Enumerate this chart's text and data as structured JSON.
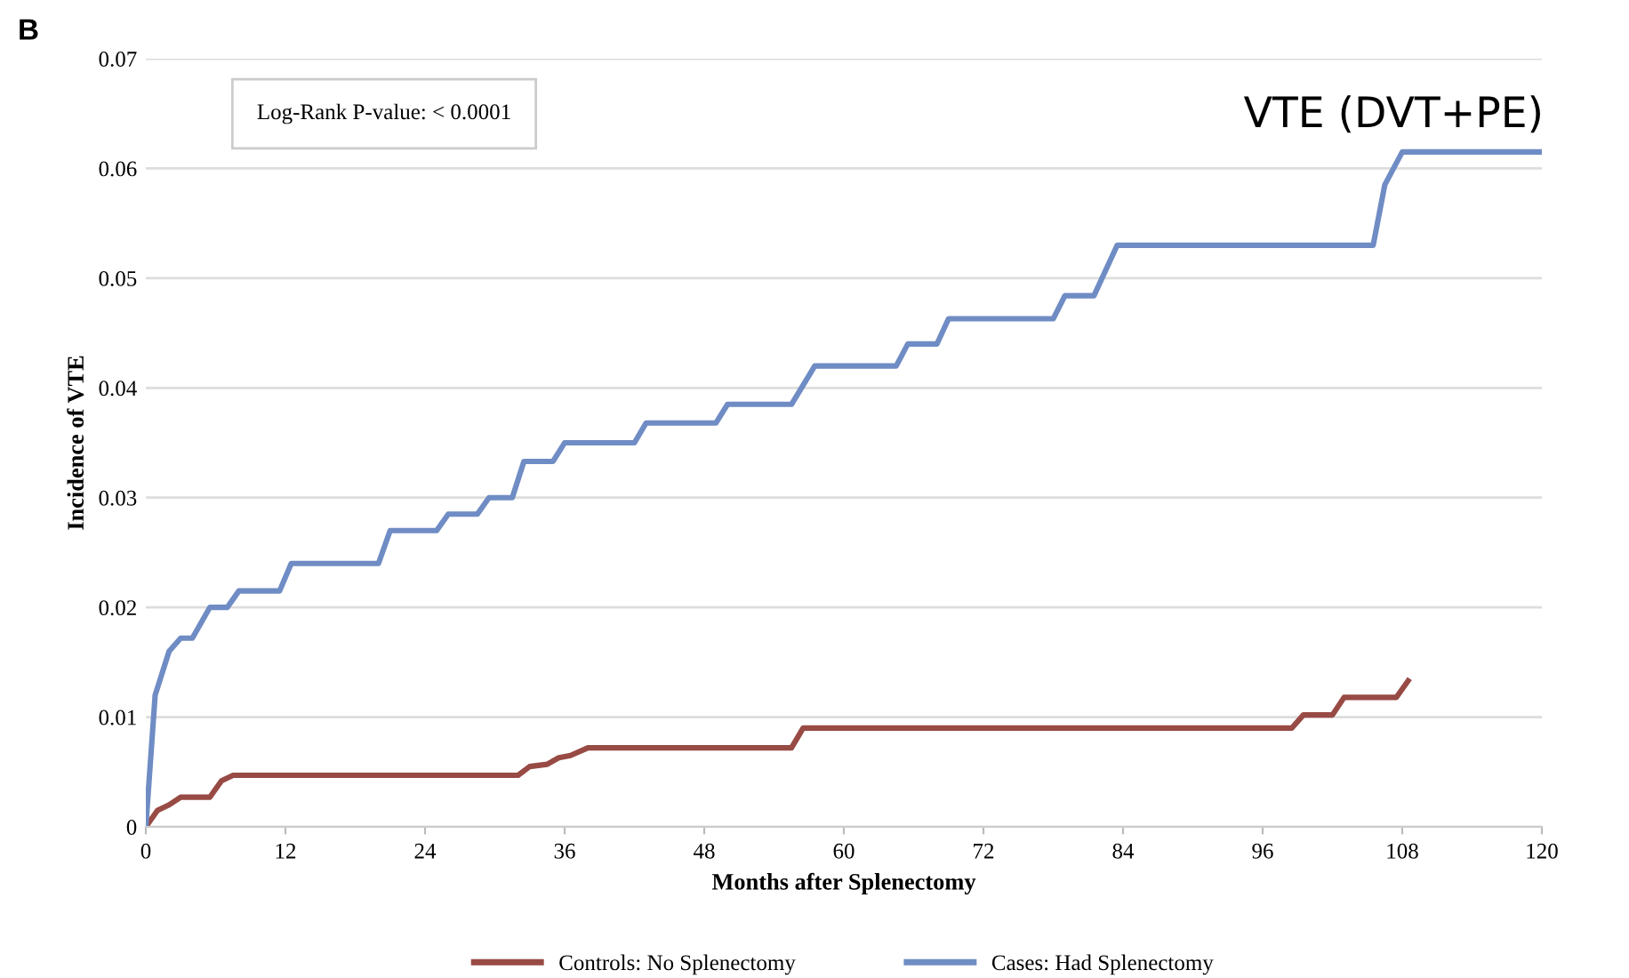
{
  "chart_data": {
    "type": "line",
    "title": "VTE (DVT+PE)",
    "xlabel": "Months after Splenectomy",
    "ylabel": "Incidence of VTE",
    "annotations": [
      "B",
      "Log-Rank P-value: < 0.0001"
    ],
    "series": [
      {
        "name": "Controls: No Splenectomy",
        "color": "#984a44",
        "x": [
          0,
          1,
          2,
          3,
          5.5,
          6.5,
          7.5,
          32,
          33,
          34.5,
          35.5,
          36.5,
          38,
          55.5,
          56.5,
          98.5,
          99.5,
          102,
          103,
          107.5,
          108.5
        ],
        "values": [
          0,
          0.0015,
          0.002,
          0.0027,
          0.0027,
          0.0042,
          0.0047,
          0.0047,
          0.0055,
          0.0057,
          0.0063,
          0.0065,
          0.0072,
          0.0072,
          0.009,
          0.009,
          0.0102,
          0.0102,
          0.0118,
          0.0118,
          0.0133
        ]
      },
      {
        "name": "Cases: Had Splenectomy",
        "color": "#6f8cc4",
        "x": [
          0,
          0.8,
          2,
          3,
          4,
          5.5,
          7,
          8,
          11.5,
          12.5,
          20,
          21,
          25,
          26,
          28.5,
          29.5,
          31.5,
          32.5,
          35,
          36,
          42,
          43,
          49,
          50,
          55.5,
          57.5,
          64.5,
          65.5,
          68,
          69,
          78,
          79,
          81.5,
          83.5,
          105.5,
          106.5,
          108,
          120
        ],
        "values": [
          0,
          0.012,
          0.016,
          0.0172,
          0.0172,
          0.02,
          0.02,
          0.0215,
          0.0215,
          0.024,
          0.024,
          0.027,
          0.027,
          0.0285,
          0.0285,
          0.03,
          0.03,
          0.0333,
          0.0333,
          0.035,
          0.035,
          0.0368,
          0.0368,
          0.0385,
          0.0385,
          0.042,
          0.042,
          0.044,
          0.044,
          0.0463,
          0.0463,
          0.0484,
          0.0484,
          0.053,
          0.053,
          0.0585,
          0.0615,
          0.0615
        ]
      }
    ],
    "xlim": [
      0,
      120
    ],
    "xticks": [
      0,
      12,
      24,
      36,
      48,
      60,
      72,
      84,
      96,
      108,
      120
    ],
    "ylim": [
      0,
      0.07
    ],
    "yticks": [
      0,
      0.01,
      0.02,
      0.03,
      0.04,
      0.05,
      0.06,
      0.07
    ],
    "grid": "y",
    "legend": "bottom",
    "marker": "none",
    "line_style": "solid"
  }
}
